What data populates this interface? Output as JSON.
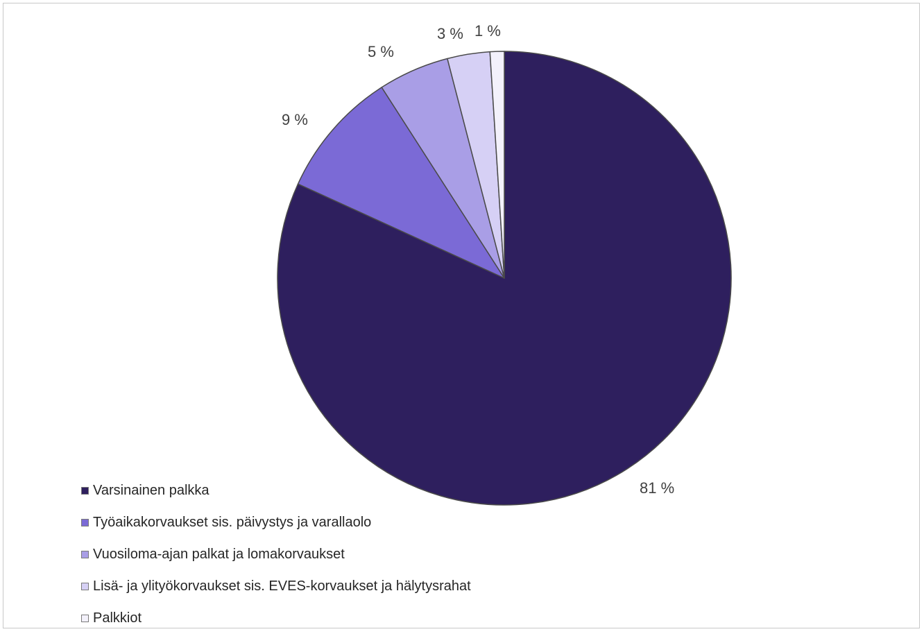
{
  "chart_data": {
    "type": "pie",
    "title": "",
    "start_angle": "12 o'clock",
    "direction": "clockwise",
    "slices": [
      {
        "label": "Varsinainen palkka",
        "value": 81,
        "display": "81 %",
        "color": "#2e1f5e"
      },
      {
        "label": "Työaikakorvaukset sis. päivystys ja varallaolo",
        "value": 9,
        "display": "9 %",
        "color": "#7b6ad6"
      },
      {
        "label": "Vuosiloma-ajan palkat ja lomakorvaukset",
        "value": 5,
        "display": "5 %",
        "color": "#a99ee6"
      },
      {
        "label": "Lisä- ja ylityökorvaukset sis. EVES-korvaukset ja hälytysrahat",
        "value": 3,
        "display": "3 %",
        "color": "#d6d0f5"
      },
      {
        "label": "Palkkiot",
        "value": 1,
        "display": "1 %",
        "color": "#f3f1fb"
      }
    ],
    "legend_position": "bottom-left"
  }
}
